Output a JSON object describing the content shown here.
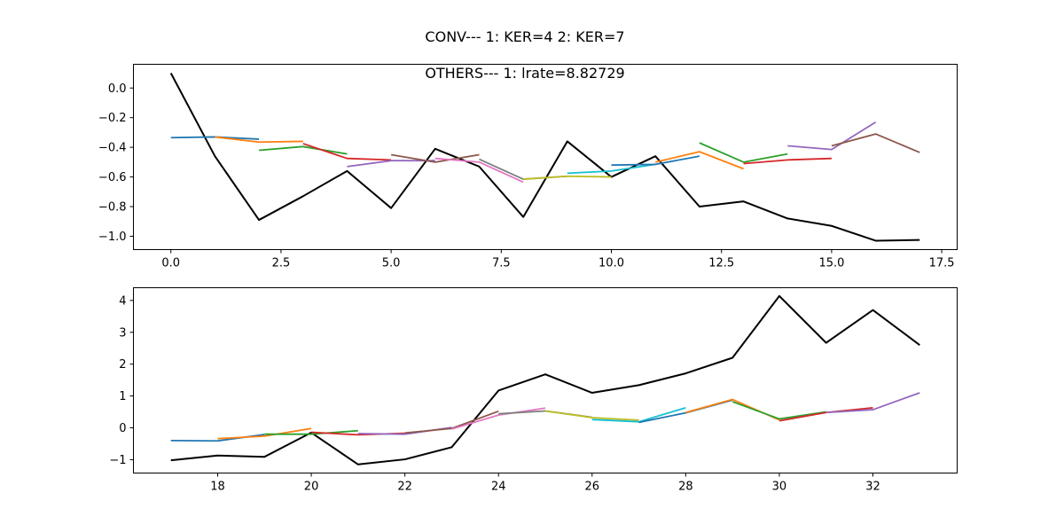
{
  "suptitle": "CONV--- 1: KER=4   2: KER=7",
  "chart_data": [
    {
      "type": "line",
      "title": "OTHERS--- 1: lrate=8.82729",
      "xlabel": "",
      "ylabel": "",
      "xlim": [
        -0.85,
        17.85
      ],
      "ylim": [
        -1.09,
        0.16
      ],
      "xticks": [
        0.0,
        2.5,
        5.0,
        7.5,
        10.0,
        12.5,
        15.0,
        17.5
      ],
      "xtick_labels": [
        "0.0",
        "2.5",
        "5.0",
        "7.5",
        "10.0",
        "12.5",
        "15.0",
        "17.5"
      ],
      "yticks": [
        0.0,
        -0.2,
        -0.4,
        -0.6,
        -0.8,
        -1.0
      ],
      "ytick_labels": [
        "0.0",
        "−0.2",
        "−0.4",
        "−0.6",
        "−0.8",
        "−1.0"
      ],
      "grid": false,
      "series": [
        {
          "color": "#000000",
          "x": [
            0,
            1,
            2,
            3,
            4,
            5,
            6,
            7,
            8,
            9,
            10,
            11,
            12,
            13,
            14,
            15,
            16,
            17
          ],
          "y": [
            0.1,
            -0.46,
            -0.89,
            -0.73,
            -0.56,
            -0.81,
            -0.41,
            -0.53,
            -0.87,
            -0.36,
            -0.6,
            -0.46,
            -0.8,
            -0.765,
            -0.88,
            -0.93,
            -1.03,
            -1.025
          ]
        },
        {
          "color": "#1f77b4",
          "x": [
            0,
            1,
            2
          ],
          "y": [
            -0.335,
            -0.33,
            -0.345
          ]
        },
        {
          "color": "#ff7f0e",
          "x": [
            1,
            2,
            3
          ],
          "y": [
            -0.33,
            -0.365,
            -0.36
          ]
        },
        {
          "color": "#2ca02c",
          "x": [
            2,
            3,
            4
          ],
          "y": [
            -0.42,
            -0.395,
            -0.445
          ]
        },
        {
          "color": "#d62728",
          "x": [
            3,
            4,
            5
          ],
          "y": [
            -0.375,
            -0.475,
            -0.485
          ]
        },
        {
          "color": "#9467bd",
          "x": [
            4,
            5,
            6
          ],
          "y": [
            -0.53,
            -0.49,
            -0.49
          ]
        },
        {
          "color": "#8c564b",
          "x": [
            5,
            6,
            7
          ],
          "y": [
            -0.45,
            -0.5,
            -0.45
          ]
        },
        {
          "color": "#e377c2",
          "x": [
            6,
            7,
            8
          ],
          "y": [
            -0.475,
            -0.5,
            -0.635
          ]
        },
        {
          "color": "#7f7f7f",
          "x": [
            7,
            8,
            9
          ],
          "y": [
            -0.48,
            -0.615,
            -0.595
          ]
        },
        {
          "color": "#bcbd22",
          "x": [
            8,
            9,
            10
          ],
          "y": [
            -0.615,
            -0.595,
            -0.6
          ]
        },
        {
          "color": "#17becf",
          "x": [
            9,
            10,
            11
          ],
          "y": [
            -0.575,
            -0.56,
            -0.515
          ]
        },
        {
          "color": "#1f77b4",
          "x": [
            10,
            11,
            12
          ],
          "y": [
            -0.52,
            -0.515,
            -0.46
          ]
        },
        {
          "color": "#ff7f0e",
          "x": [
            11,
            12,
            13
          ],
          "y": [
            -0.5,
            -0.43,
            -0.545
          ]
        },
        {
          "color": "#2ca02c",
          "x": [
            12,
            13,
            14
          ],
          "y": [
            -0.37,
            -0.5,
            -0.445
          ]
        },
        {
          "color": "#d62728",
          "x": [
            13,
            14,
            15
          ],
          "y": [
            -0.51,
            -0.485,
            -0.475
          ]
        },
        {
          "color": "#9467bd",
          "x": [
            14,
            15,
            16
          ],
          "y": [
            -0.39,
            -0.415,
            -0.23
          ]
        },
        {
          "color": "#8c564b",
          "x": [
            15,
            16,
            17
          ],
          "y": [
            -0.39,
            -0.31,
            -0.435
          ]
        }
      ]
    },
    {
      "type": "line",
      "title": "",
      "xlabel": "",
      "ylabel": "",
      "xlim": [
        16.2,
        33.8
      ],
      "ylim": [
        -1.42,
        4.4
      ],
      "xticks": [
        18,
        20,
        22,
        24,
        26,
        28,
        30,
        32
      ],
      "xtick_labels": [
        "18",
        "20",
        "22",
        "24",
        "26",
        "28",
        "30",
        "32"
      ],
      "yticks": [
        4,
        3,
        2,
        1,
        0,
        -1
      ],
      "ytick_labels": [
        "4",
        "3",
        "2",
        "1",
        "0",
        "−1"
      ],
      "grid": false,
      "series": [
        {
          "color": "#000000",
          "x": [
            17,
            18,
            19,
            20,
            21,
            22,
            23,
            24,
            25,
            26,
            27,
            28,
            29,
            30,
            31,
            32,
            33
          ],
          "y": [
            -1.02,
            -0.87,
            -0.91,
            -0.15,
            -1.15,
            -0.99,
            -0.61,
            1.17,
            1.68,
            1.1,
            1.34,
            1.71,
            2.2,
            4.14,
            2.67,
            3.7,
            2.6
          ]
        },
        {
          "color": "#1f77b4",
          "x": [
            17,
            18,
            19
          ],
          "y": [
            -0.4,
            -0.41,
            -0.21
          ]
        },
        {
          "color": "#ff7f0e",
          "x": [
            18,
            19,
            20
          ],
          "y": [
            -0.34,
            -0.26,
            -0.02
          ]
        },
        {
          "color": "#2ca02c",
          "x": [
            19,
            20,
            21
          ],
          "y": [
            -0.2,
            -0.2,
            -0.09
          ]
        },
        {
          "color": "#d62728",
          "x": [
            20,
            21,
            22
          ],
          "y": [
            -0.14,
            -0.22,
            -0.17
          ]
        },
        {
          "color": "#9467bd",
          "x": [
            21,
            22,
            23
          ],
          "y": [
            -0.18,
            -0.2,
            0.01
          ]
        },
        {
          "color": "#8c564b",
          "x": [
            22,
            23,
            24
          ],
          "y": [
            -0.16,
            -0.02,
            0.52
          ]
        },
        {
          "color": "#e377c2",
          "x": [
            23,
            24,
            25
          ],
          "y": [
            -0.04,
            0.4,
            0.62
          ]
        },
        {
          "color": "#7f7f7f",
          "x": [
            24,
            25,
            26
          ],
          "y": [
            0.44,
            0.53,
            0.33
          ]
        },
        {
          "color": "#bcbd22",
          "x": [
            25,
            26,
            27
          ],
          "y": [
            0.53,
            0.32,
            0.24
          ]
        },
        {
          "color": "#17becf",
          "x": [
            26,
            27,
            28
          ],
          "y": [
            0.26,
            0.19,
            0.63
          ]
        },
        {
          "color": "#1f77b4",
          "x": [
            27,
            28,
            29
          ],
          "y": [
            0.17,
            0.47,
            0.87
          ]
        },
        {
          "color": "#ff7f0e",
          "x": [
            28,
            29,
            30
          ],
          "y": [
            0.48,
            0.89,
            0.25
          ]
        },
        {
          "color": "#2ca02c",
          "x": [
            29,
            30,
            31
          ],
          "y": [
            0.82,
            0.28,
            0.5
          ]
        },
        {
          "color": "#d62728",
          "x": [
            30,
            31,
            32
          ],
          "y": [
            0.22,
            0.48,
            0.63
          ]
        },
        {
          "color": "#9467bd",
          "x": [
            31,
            32,
            33
          ],
          "y": [
            0.48,
            0.57,
            1.1
          ]
        }
      ]
    }
  ]
}
